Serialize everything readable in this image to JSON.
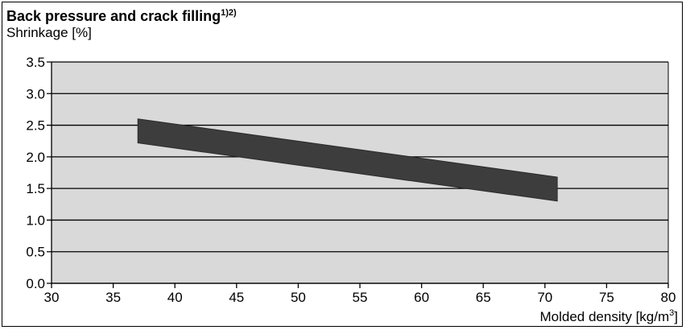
{
  "chart_data": {
    "type": "area",
    "title": "Back pressure and crack filling",
    "title_superscript": "1)2)",
    "ylabel": "Shrinkage [%]",
    "xlabel": "Molded density [kg/m",
    "xlabel_superscript": "3",
    "xlabel_suffix": "]",
    "xlim": [
      30,
      80
    ],
    "ylim": [
      0.0,
      3.5
    ],
    "x_ticks": [
      30,
      35,
      40,
      45,
      50,
      55,
      60,
      65,
      70,
      75,
      80
    ],
    "y_ticks": [
      "0.0",
      "0.5",
      "1.0",
      "1.5",
      "2.0",
      "2.5",
      "3.0",
      "3.5"
    ],
    "grid": "horizontal",
    "series": [
      {
        "band_x": [
          37,
          71
        ],
        "upper": [
          2.6,
          1.68
        ],
        "lower": [
          2.22,
          1.3
        ]
      }
    ],
    "colors": {
      "plot_background": "#d9d9d9",
      "band": "#3d3d3d",
      "grid": "#000000"
    }
  }
}
